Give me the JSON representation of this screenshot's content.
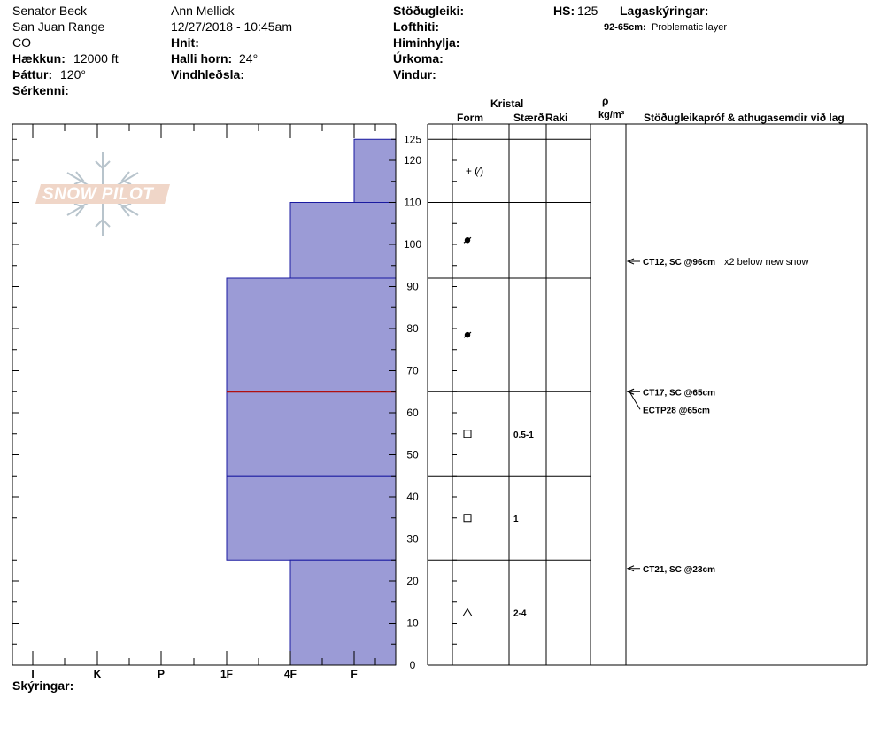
{
  "header": {
    "location": "Senator Beck",
    "range": "San Juan Range",
    "state": "CO",
    "elevation_label": "Hækkun:",
    "elevation_value": "12000 ft",
    "aspect_label": "Þáttur:",
    "aspect_value": "120°",
    "features_label": "Sérkenni:",
    "observer": "Ann Mellick",
    "datetime": "12/27/2018 - 10:45am",
    "coords_label": "Hnit:",
    "slope_label": "Halli horn:",
    "slope_value": "24°",
    "wind_loading_label": "Vindhleðsla:",
    "stability_label": "Stöðugleiki:",
    "air_temp_label": "Lofthiti:",
    "sky_label": "Himinhylja:",
    "precip_label": "Úrkoma:",
    "wind_label": "Vindur:",
    "hs_label": "HS:",
    "hs_value": "125",
    "layer_notes_label": "Lagaskýringar:",
    "layer_note_depth": "92-65cm:",
    "layer_note_text": "Problematic layer"
  },
  "logo": {
    "text": "SNOW PILOT"
  },
  "columns": {
    "crystal": "Kristal",
    "form": "Form",
    "size": "Stærð",
    "moisture": "Raki",
    "rho": "ρ",
    "density_unit": "kg/m³",
    "tests": "Stöðugleikapróf & athugasemdir við lag"
  },
  "footer": {
    "notes_label": "Skýringar:"
  },
  "colors": {
    "layer_fill": "#9b9bd6",
    "layer_edge": "#1a1aa0",
    "problem_line": "#b01010"
  },
  "chart_data": {
    "type": "bar",
    "y_axis_ticks": [
      0,
      10,
      20,
      30,
      40,
      50,
      60,
      70,
      80,
      90,
      100,
      110,
      120,
      125
    ],
    "ylim": [
      0,
      125
    ],
    "hardness_scale": [
      "I",
      "K",
      "P",
      "1F",
      "4F",
      "F"
    ],
    "layers": [
      {
        "top": 125,
        "bottom": 110,
        "hardness": "F",
        "form_symbol": "+ (⁄)",
        "size": ""
      },
      {
        "top": 110,
        "bottom": 92,
        "hardness": "4F",
        "form_symbol": "•",
        "size": ""
      },
      {
        "top": 92,
        "bottom": 65,
        "hardness": "1F",
        "form_symbol": "•",
        "size": ""
      },
      {
        "top": 65,
        "bottom": 45,
        "hardness": "1F",
        "form_symbol": "□",
        "size": "0.5-1"
      },
      {
        "top": 45,
        "bottom": 25,
        "hardness": "1F",
        "form_symbol": "□",
        "size": "1"
      },
      {
        "top": 25,
        "bottom": 0,
        "hardness": "4F",
        "form_symbol": "^",
        "size": "2-4"
      }
    ],
    "problem_layer_depth": 65,
    "tests": [
      {
        "depth": 96,
        "label": "CT12, SC @96cm",
        "comment": "x2 below new snow"
      },
      {
        "depth": 65,
        "label": "CT17, SC @65cm",
        "comment": ""
      },
      {
        "depth": 65,
        "label": "ECTP28 @65cm",
        "comment": ""
      },
      {
        "depth": 23,
        "label": "CT21, SC @23cm",
        "comment": ""
      }
    ]
  }
}
